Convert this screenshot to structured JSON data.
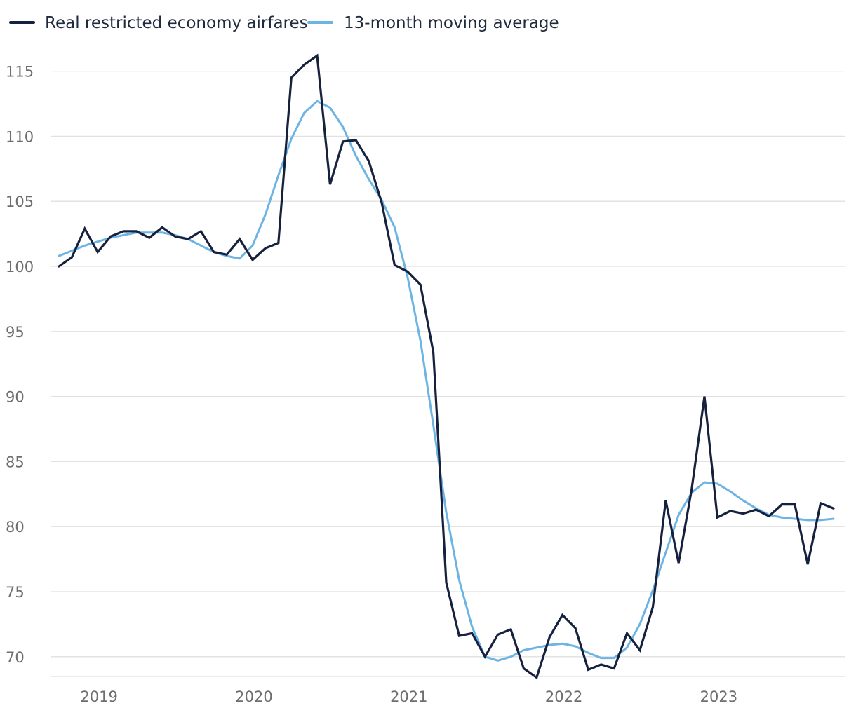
{
  "chart_data": {
    "type": "line",
    "title": "",
    "xlabel": "",
    "ylabel": "",
    "legend_position": "top-left",
    "ylim": [
      69,
      118
    ],
    "yticks": [
      70,
      75,
      80,
      85,
      90,
      95,
      100,
      105,
      110,
      115
    ],
    "xticks": [
      "2019",
      "2020",
      "2021",
      "2022",
      "2023"
    ],
    "x_start": "2018-10",
    "x_end": "2023-10",
    "x_step": "monthly",
    "series": [
      {
        "name": "Real restricted economy airfares",
        "color": "#16213e",
        "values": [
          100.0,
          100.7,
          102.9,
          101.1,
          102.3,
          102.7,
          102.7,
          102.2,
          103.0,
          102.3,
          102.1,
          102.7,
          101.1,
          100.9,
          102.1,
          100.5,
          101.4,
          101.8,
          114.5,
          115.5,
          116.2,
          106.3,
          109.6,
          109.7,
          108.1,
          104.9,
          100.1,
          99.6,
          98.6,
          93.4,
          75.7,
          71.6,
          71.8,
          70.0,
          71.7,
          72.1,
          69.1,
          68.4,
          71.5,
          73.2,
          72.2,
          69.0,
          69.4,
          69.1,
          71.8,
          70.5,
          73.8,
          82.0,
          77.2,
          82.8,
          90.0,
          80.7,
          81.2,
          81.0,
          81.3,
          80.8,
          81.7,
          81.7,
          77.1,
          81.8,
          81.4
        ]
      },
      {
        "name": "13-month moving average",
        "color": "#6cb4e4",
        "values": [
          100.8,
          101.2,
          101.6,
          101.9,
          102.2,
          102.4,
          102.6,
          102.6,
          102.6,
          102.4,
          102.1,
          101.6,
          101.1,
          100.8,
          100.6,
          101.6,
          104.0,
          107.0,
          109.8,
          111.8,
          112.7,
          112.2,
          110.7,
          108.5,
          106.7,
          105.1,
          103.0,
          99.2,
          94.3,
          87.8,
          81.1,
          75.9,
          72.3,
          70.0,
          69.7,
          70.0,
          70.5,
          70.7,
          70.9,
          71.0,
          70.8,
          70.3,
          69.9,
          69.9,
          70.7,
          72.5,
          75.1,
          78.0,
          80.9,
          82.6,
          83.4,
          83.3,
          82.7,
          82.0,
          81.4,
          80.9,
          80.7,
          80.6,
          80.5,
          80.5,
          80.6
        ]
      }
    ]
  }
}
